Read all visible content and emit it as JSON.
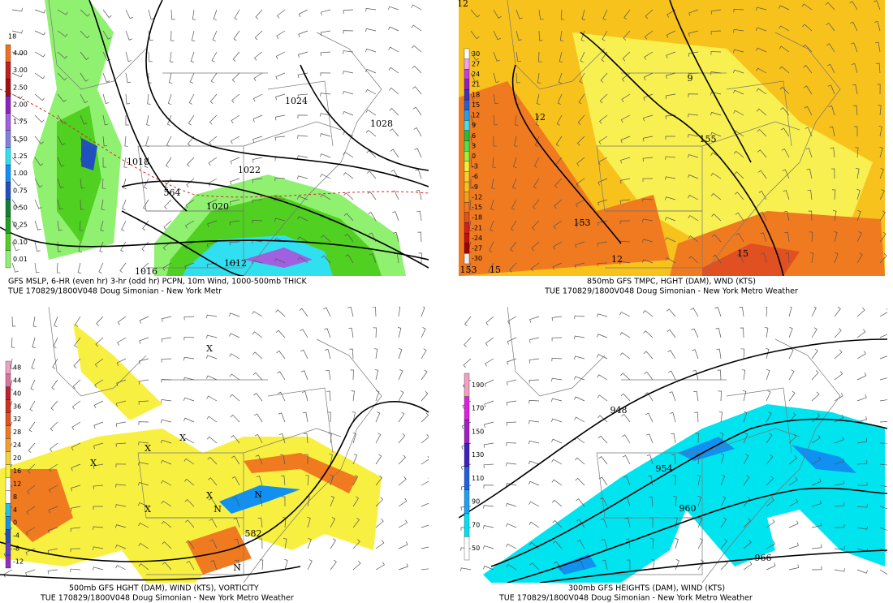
{
  "panels": [
    {
      "caption": [
        "GFS MSLP, 6-HR (even hr) 3-hr (odd hr) PCPN, 10m Wind, 1000-500mb THICK",
        "TUE 170829/1800V048 Doug Simonian - New York Metr"
      ],
      "colorbar_title": "18",
      "colorbar": [
        "4.00",
        "3.00",
        "2.50",
        "2.00",
        "1.75",
        "1.50",
        "1.25",
        "1.00",
        "0.75",
        "0.50",
        "0.25",
        "0.10",
        "0.01"
      ],
      "contour_labels": [
        "1024",
        "1028",
        "1018",
        "1022",
        "1020",
        "564",
        "1016",
        "1012"
      ]
    },
    {
      "caption": [
        "850mb GFS TMPC, HGHT (DAM), WND (KTS)",
        "TUE 170829/1800V048 Doug Simonian - New York Metro Weather"
      ],
      "colorbar": [
        "30",
        "27",
        "24",
        "21",
        "18",
        "15",
        "12",
        "9",
        "6",
        "3",
        "0",
        "-3",
        "-6",
        "-9",
        "-12",
        "-15",
        "-18",
        "-21",
        "-24",
        "-27",
        "-30"
      ],
      "contour_labels": [
        "12",
        "9",
        "155",
        "12",
        "153",
        "12",
        "15",
        "153",
        "15"
      ]
    },
    {
      "caption": [
        "500mb GFS HGHT (DAM), WIND (KTS), VORTICITY",
        "TUE 170829/1800V048 Doug Simonian - New York Metro Weather"
      ],
      "colorbar": [
        "48",
        "44",
        "40",
        "36",
        "32",
        "28",
        "24",
        "20",
        "16",
        "12",
        "8",
        "4",
        "0",
        "-4",
        "-8",
        "-12"
      ],
      "contour_labels": [
        "X",
        "X",
        "X",
        "X",
        "X",
        "X",
        "582",
        "N",
        "N",
        "N"
      ]
    },
    {
      "caption": [
        "300mb GFS HEIGHTS (DAM), WIND (KTS)",
        "TUE 170829/1800V048 Doug Simonian - New York Metro Weather"
      ],
      "colorbar": [
        "190",
        "170",
        "150",
        "130",
        "110",
        "90",
        "70",
        "50"
      ],
      "contour_labels": [
        "948",
        "954",
        "960",
        "966"
      ]
    }
  ]
}
